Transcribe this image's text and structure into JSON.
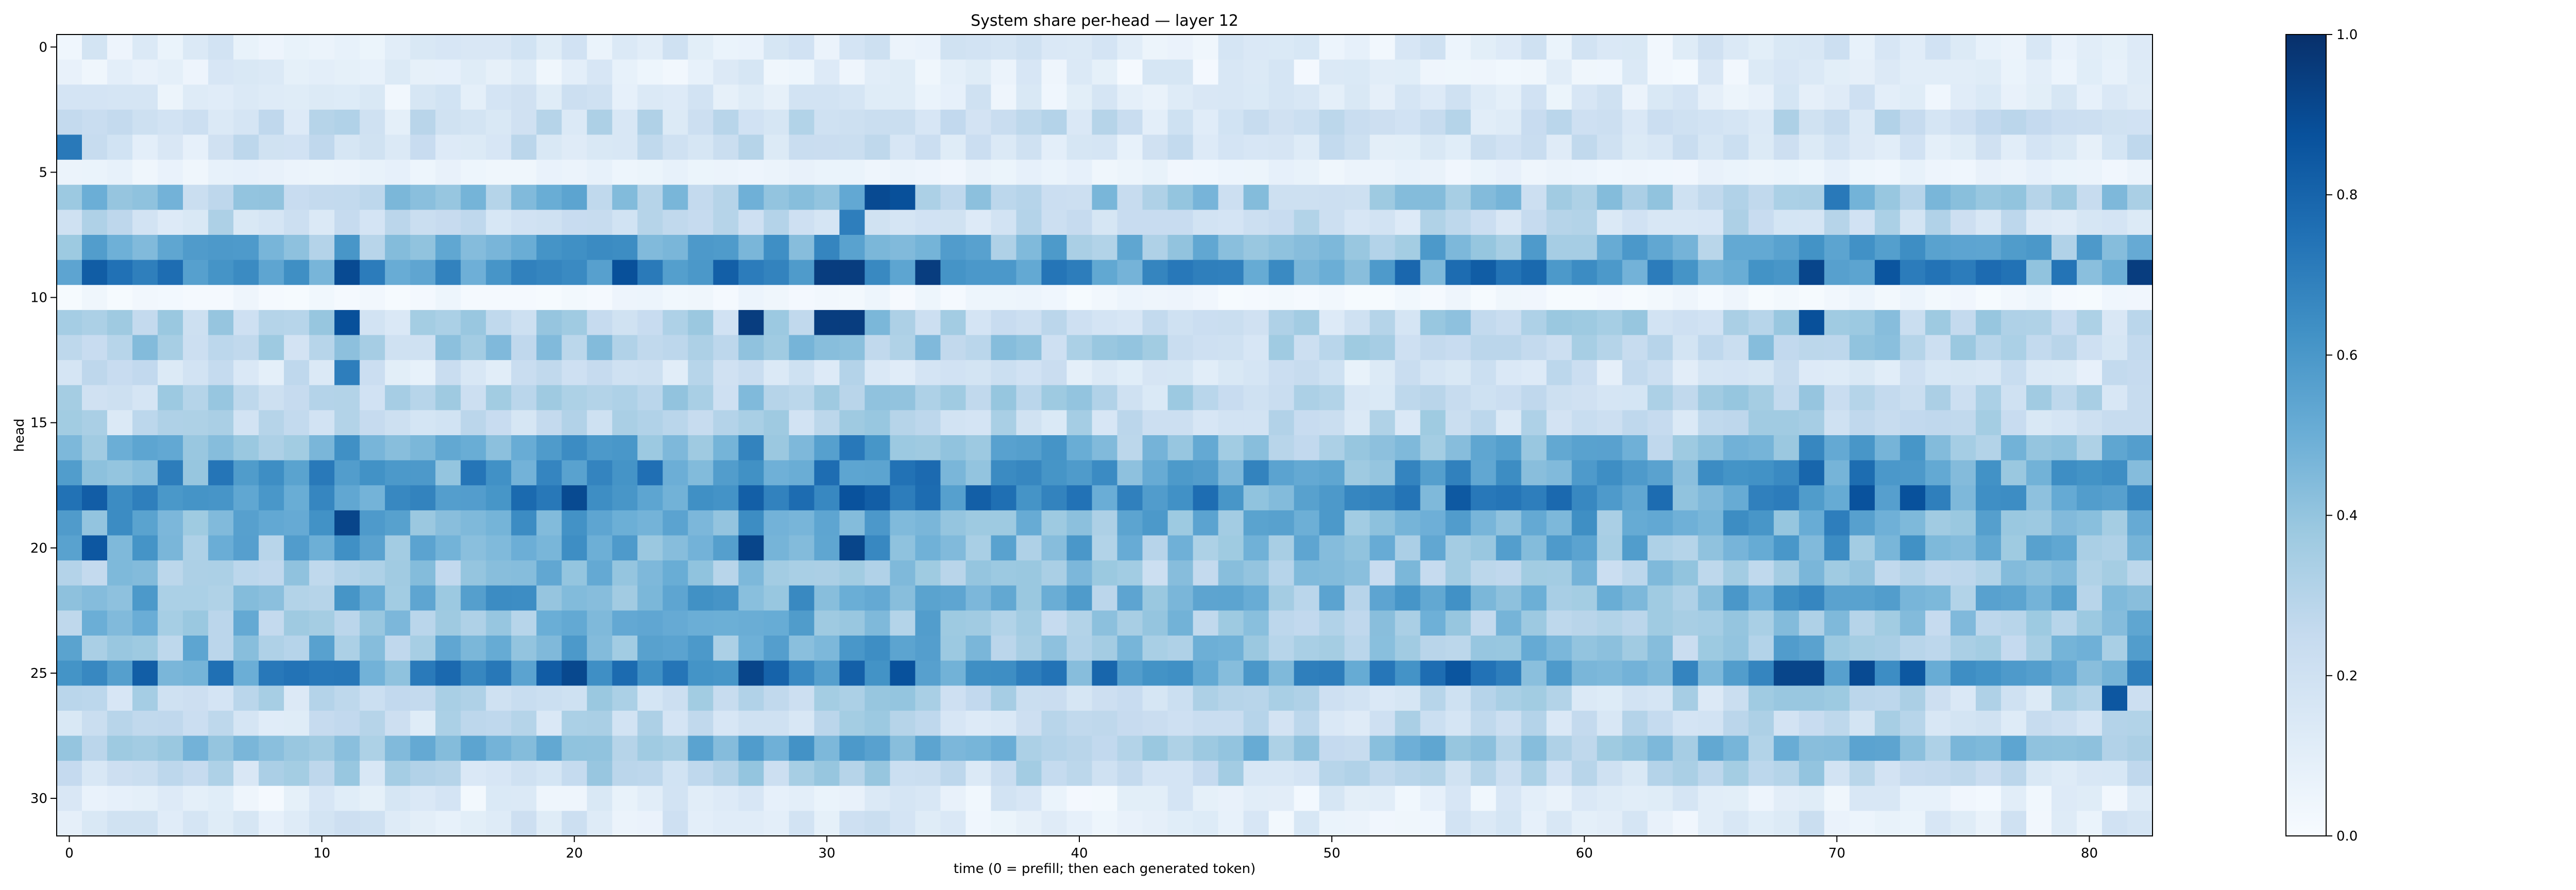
{
  "figure": {
    "title": "System share per-head — layer 12",
    "xlabel": "time (0 = prefill; then each generated token)",
    "ylabel": "head"
  },
  "chart_data": {
    "type": "heatmap",
    "title": "System share per-head — layer 12",
    "xlabel": "time (0 = prefill; then each generated token)",
    "ylabel": "head",
    "colormap": "Blues",
    "colormap_low": "#f7fbff",
    "colormap_high": "#08306b",
    "n_rows": 32,
    "n_cols": 83,
    "xlim": [
      -0.5,
      82.5
    ],
    "ylim": [
      31.5,
      -0.5
    ],
    "x_ticks": [
      0,
      10,
      20,
      30,
      40,
      50,
      60,
      70,
      80
    ],
    "y_ticks": [
      0,
      5,
      10,
      15,
      20,
      25,
      30
    ],
    "colorbar": {
      "range": [
        0.0,
        1.0
      ],
      "ticks": [
        "0.0",
        "0.2",
        "0.4",
        "0.6",
        "0.8",
        "1.0"
      ],
      "placement": "right"
    },
    "row_profile_values": [
      0.12,
      0.1,
      0.12,
      0.2,
      0.18,
      0.06,
      0.35,
      0.22,
      0.45,
      0.62,
      0.03,
      0.28,
      0.3,
      0.18,
      0.28,
      0.25,
      0.45,
      0.55,
      0.62,
      0.48,
      0.45,
      0.35,
      0.45,
      0.38,
      0.4,
      0.62,
      0.25,
      0.22,
      0.4,
      0.25,
      0.1,
      0.12
    ],
    "column_profile_values": [
      0.42,
      0.42,
      0.4,
      0.42,
      0.4,
      0.38,
      0.4,
      0.38,
      0.36,
      0.38,
      0.4,
      0.48,
      0.36,
      0.34,
      0.36,
      0.4,
      0.42,
      0.46,
      0.48,
      0.5,
      0.52,
      0.5,
      0.48,
      0.5,
      0.46,
      0.48,
      0.48,
      0.56,
      0.52,
      0.54,
      0.56,
      0.6,
      0.58,
      0.52,
      0.5,
      0.44,
      0.4,
      0.42,
      0.4,
      0.4,
      0.38,
      0.36,
      0.34,
      0.34,
      0.36,
      0.38,
      0.36,
      0.34,
      0.32,
      0.32,
      0.3,
      0.3,
      0.3,
      0.42,
      0.4,
      0.44,
      0.42,
      0.4,
      0.38,
      0.4,
      0.38,
      0.36,
      0.36,
      0.34,
      0.34,
      0.36,
      0.46,
      0.5,
      0.48,
      0.54,
      0.5,
      0.5,
      0.48,
      0.46,
      0.4,
      0.36,
      0.38,
      0.38,
      0.36,
      0.34,
      0.36,
      0.34,
      0.44
    ],
    "peak_cells": [
      {
        "row": 4,
        "col": 0,
        "value": 0.72
      },
      {
        "row": 6,
        "col": 32,
        "value": 0.9
      },
      {
        "row": 6,
        "col": 33,
        "value": 0.88
      },
      {
        "row": 6,
        "col": 70,
        "value": 0.72
      },
      {
        "row": 7,
        "col": 31,
        "value": 0.7
      },
      {
        "row": 9,
        "col": 11,
        "value": 0.9
      },
      {
        "row": 9,
        "col": 30,
        "value": 0.95
      },
      {
        "row": 9,
        "col": 31,
        "value": 0.95
      },
      {
        "row": 9,
        "col": 34,
        "value": 0.95
      },
      {
        "row": 9,
        "col": 82,
        "value": 0.95
      },
      {
        "row": 11,
        "col": 11,
        "value": 0.88
      },
      {
        "row": 11,
        "col": 27,
        "value": 0.95
      },
      {
        "row": 11,
        "col": 30,
        "value": 0.95
      },
      {
        "row": 11,
        "col": 31,
        "value": 0.95
      },
      {
        "row": 11,
        "col": 69,
        "value": 0.88
      },
      {
        "row": 13,
        "col": 11,
        "value": 0.7
      },
      {
        "row": 19,
        "col": 11,
        "value": 0.92
      },
      {
        "row": 20,
        "col": 1,
        "value": 0.85
      },
      {
        "row": 20,
        "col": 27,
        "value": 0.92
      },
      {
        "row": 20,
        "col": 31,
        "value": 0.92
      },
      {
        "row": 25,
        "col": 27,
        "value": 0.92
      },
      {
        "row": 25,
        "col": 68,
        "value": 0.92
      },
      {
        "row": 25,
        "col": 69,
        "value": 0.92
      },
      {
        "row": 25,
        "col": 71,
        "value": 0.9
      },
      {
        "row": 26,
        "col": 81,
        "value": 0.85
      }
    ],
    "grid": false,
    "legend": "none"
  }
}
